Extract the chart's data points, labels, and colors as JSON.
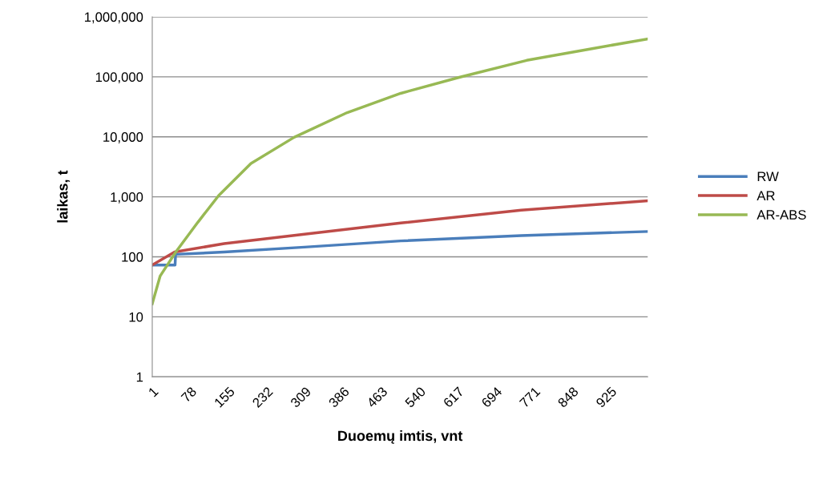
{
  "chart_data": {
    "type": "line",
    "xlabel": "Duoemų imtis, vnt",
    "ylabel": "laikas, t",
    "log": "y",
    "grid": "y",
    "legend": "right",
    "marker": "none",
    "line_style": "solid",
    "xlim": [
      1,
      1000
    ],
    "xticks": [
      1,
      78,
      155,
      232,
      309,
      386,
      463,
      540,
      617,
      694,
      771,
      848,
      925
    ],
    "ylim": [
      1,
      1000000
    ],
    "yticks": [
      1,
      10,
      100,
      {
        "value": 1000,
        "label": "1,000"
      },
      {
        "value": 10000,
        "label": "10,000"
      },
      {
        "value": 100000,
        "label": "100,000"
      },
      {
        "value": 1000000,
        "label": "1,000,000"
      }
    ],
    "series": [
      {
        "name": "RW",
        "color": "#4a7ebb",
        "x": [
          1,
          47,
          48,
          146,
          308,
          502,
          745,
          1000
        ],
        "values": [
          73,
          73,
          110,
          120,
          145,
          184,
          226,
          264
        ]
      },
      {
        "name": "AR",
        "color": "#be4b48",
        "x": [
          1,
          46,
          146,
          308,
          502,
          745,
          1000
        ],
        "values": [
          73,
          120,
          166,
          238,
          366,
          600,
          859
        ]
      },
      {
        "name": "AR-ABS",
        "color": "#98b954",
        "x": [
          1,
          17,
          49,
          93,
          135,
          200,
          287,
          394,
          502,
          620,
          756,
          890,
          1000
        ],
        "values": [
          16.5,
          48,
          122,
          377,
          1050,
          3600,
          9800,
          25300,
          53000,
          98000,
          188000,
          297000,
          428000
        ]
      }
    ]
  }
}
